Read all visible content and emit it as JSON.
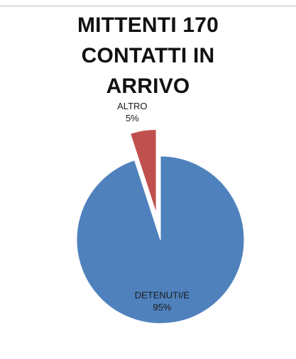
{
  "chart_data": {
    "type": "pie",
    "title_lines": [
      "MITTENTI 170",
      "CONTATTI IN",
      "ARRIVO"
    ],
    "slices": [
      {
        "label": "DETENUTI/E",
        "value": 95,
        "value_label": "95%",
        "color": "#4f81bd",
        "exploded": false
      },
      {
        "label": "ALTRO",
        "value": 5,
        "value_label": "5%",
        "color": "#c0504d",
        "exploded": true
      }
    ],
    "legend": "none"
  }
}
